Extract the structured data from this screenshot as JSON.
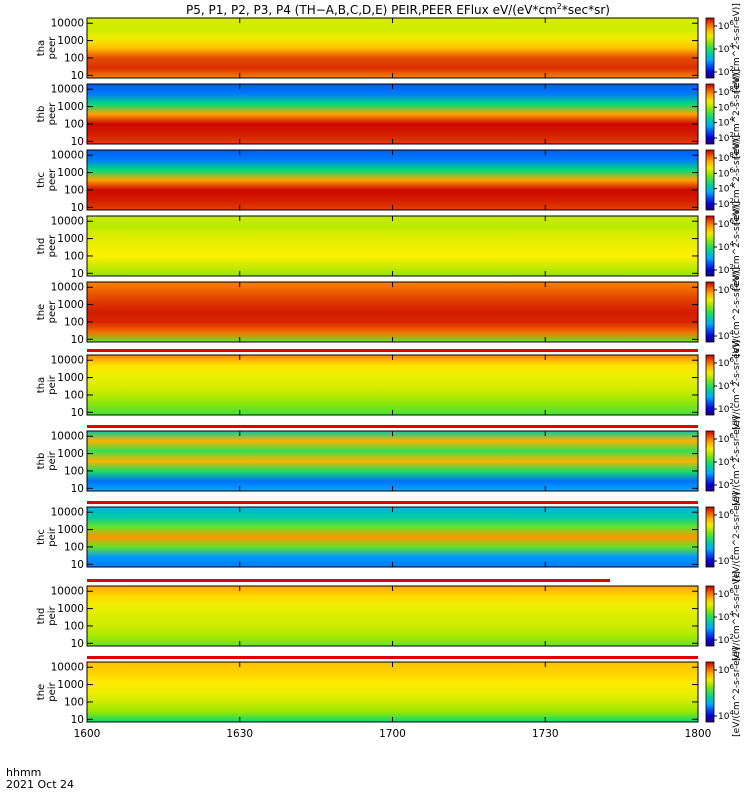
{
  "chart_data": {
    "type": "heatmap",
    "title_parts": {
      "pre": "P5, P1, P2, P3, P4 (TH−A,B,C,D,E) PEIR,PEER EFlux eV/(eV*cm",
      "sup": "2",
      "post": "*sec*sr)"
    },
    "x_ticks": [
      "1600",
      "1630",
      "1700",
      "1730",
      "1800"
    ],
    "x_range_minutes": [
      0,
      120
    ],
    "x_axis_label": "hhmm",
    "date_label": "2021 Oct 24",
    "y_scale": "log",
    "y_ticks": [
      "10",
      "100",
      "1000",
      "10000"
    ],
    "y_range": [
      7,
      20000
    ],
    "colormap": "rainbow",
    "panels": [
      {
        "probe": "tha",
        "species": "peer",
        "colorbar_ticks": [
          "10",
          "10",
          "10"
        ],
        "colorbar_exps": [
          "6",
          "4",
          "2"
        ],
        "unit_label": "[eV/(cm^2-s-sr-eV)]"
      },
      {
        "probe": "thb",
        "species": "peer",
        "colorbar_ticks": [
          "10",
          "10",
          "10",
          "10"
        ],
        "colorbar_exps": [
          "8",
          "6",
          "4",
          "2"
        ],
        "unit_label": "[eV/(cm^2-s-sr-eV)]"
      },
      {
        "probe": "thc",
        "species": "peer",
        "colorbar_ticks": [
          "10",
          "10",
          "10",
          "10"
        ],
        "colorbar_exps": [
          "8",
          "6",
          "4",
          "2"
        ],
        "unit_label": "[eV/(cm^2-s-sr-eV)]"
      },
      {
        "probe": "thd",
        "species": "peer",
        "colorbar_ticks": [
          "10",
          "10",
          "10"
        ],
        "colorbar_exps": [
          "6",
          "4",
          "2"
        ],
        "unit_label": "[eV/(cm^2-s-sr-eV)]"
      },
      {
        "probe": "the",
        "species": "peer",
        "colorbar_ticks": [
          "10",
          "10"
        ],
        "colorbar_exps": [
          "6",
          "4"
        ],
        "unit_label": "[eV/(cm^2-s-sr-eV)]"
      },
      {
        "probe": "tha",
        "species": "peir",
        "colorbar_ticks": [
          "10",
          "10",
          "10"
        ],
        "colorbar_exps": [
          "6",
          "4",
          "2"
        ],
        "unit_label": "[eV/(cm^2-s-sr-eV)]"
      },
      {
        "probe": "thb",
        "species": "peir",
        "colorbar_ticks": [
          "10",
          "10",
          "10"
        ],
        "colorbar_exps": [
          "6",
          "4",
          "2"
        ],
        "unit_label": "[eV/(cm^2-s-sr-eV)]"
      },
      {
        "probe": "thc",
        "species": "peir",
        "colorbar_ticks": [
          "10",
          "10"
        ],
        "colorbar_exps": [
          "6",
          "4"
        ],
        "unit_label": "[eV/(cm^2-s-sr-eV)]"
      },
      {
        "probe": "thd",
        "species": "peir",
        "colorbar_ticks": [
          "10",
          "10",
          "10"
        ],
        "colorbar_exps": [
          "6",
          "4",
          "2"
        ],
        "unit_label": "[eV/(cm^2-s-sr-eV)]"
      },
      {
        "probe": "the",
        "species": "peir",
        "colorbar_ticks": [
          "10",
          "10"
        ],
        "colorbar_exps": [
          "6",
          "4"
        ],
        "unit_label": "[eV/(cm^2-s-sr-eV)]"
      }
    ]
  }
}
